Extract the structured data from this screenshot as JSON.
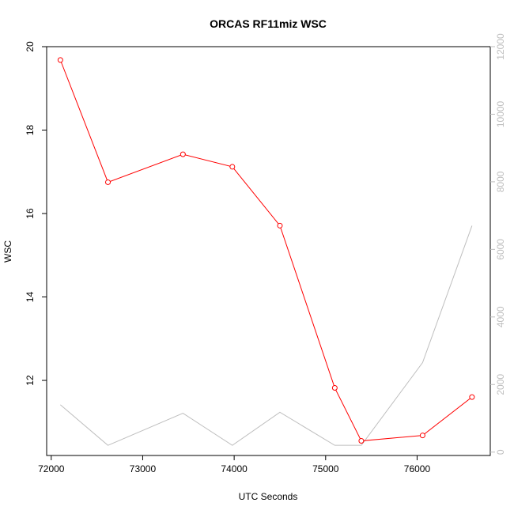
{
  "chart_data": {
    "type": "line",
    "title": "ORCAS RF11miz WSC",
    "xlabel": "UTC Seconds",
    "ylabel": "WSC",
    "xlim": [
      71950,
      76800
    ],
    "ylim": [
      10.2,
      20.0
    ],
    "ylim_right": [
      -100,
      12000
    ],
    "x_ticks": [
      72000,
      73000,
      74000,
      75000,
      76000
    ],
    "y_ticks": [
      12,
      14,
      16,
      18,
      20
    ],
    "y_ticks_right": [
      0,
      2000,
      4000,
      6000,
      8000,
      10000,
      12000
    ],
    "series": [
      {
        "axis": "left",
        "color": "#ff0000",
        "markers": "open-circle",
        "x": [
          72100,
          72620,
          73440,
          73980,
          74500,
          75100,
          75390,
          76060,
          76600
        ],
        "y": [
          19.68,
          16.75,
          17.42,
          17.12,
          15.71,
          11.82,
          10.55,
          10.68,
          11.6
        ]
      },
      {
        "axis": "right",
        "color": "#bebebe",
        "markers": "none",
        "x": [
          72100,
          72620,
          73440,
          73980,
          74500,
          75100,
          75390,
          76060,
          76600
        ],
        "y": [
          1400,
          200,
          1150,
          200,
          1180,
          200,
          200,
          2650,
          6700
        ]
      }
    ],
    "grid": false,
    "legend": "none"
  }
}
